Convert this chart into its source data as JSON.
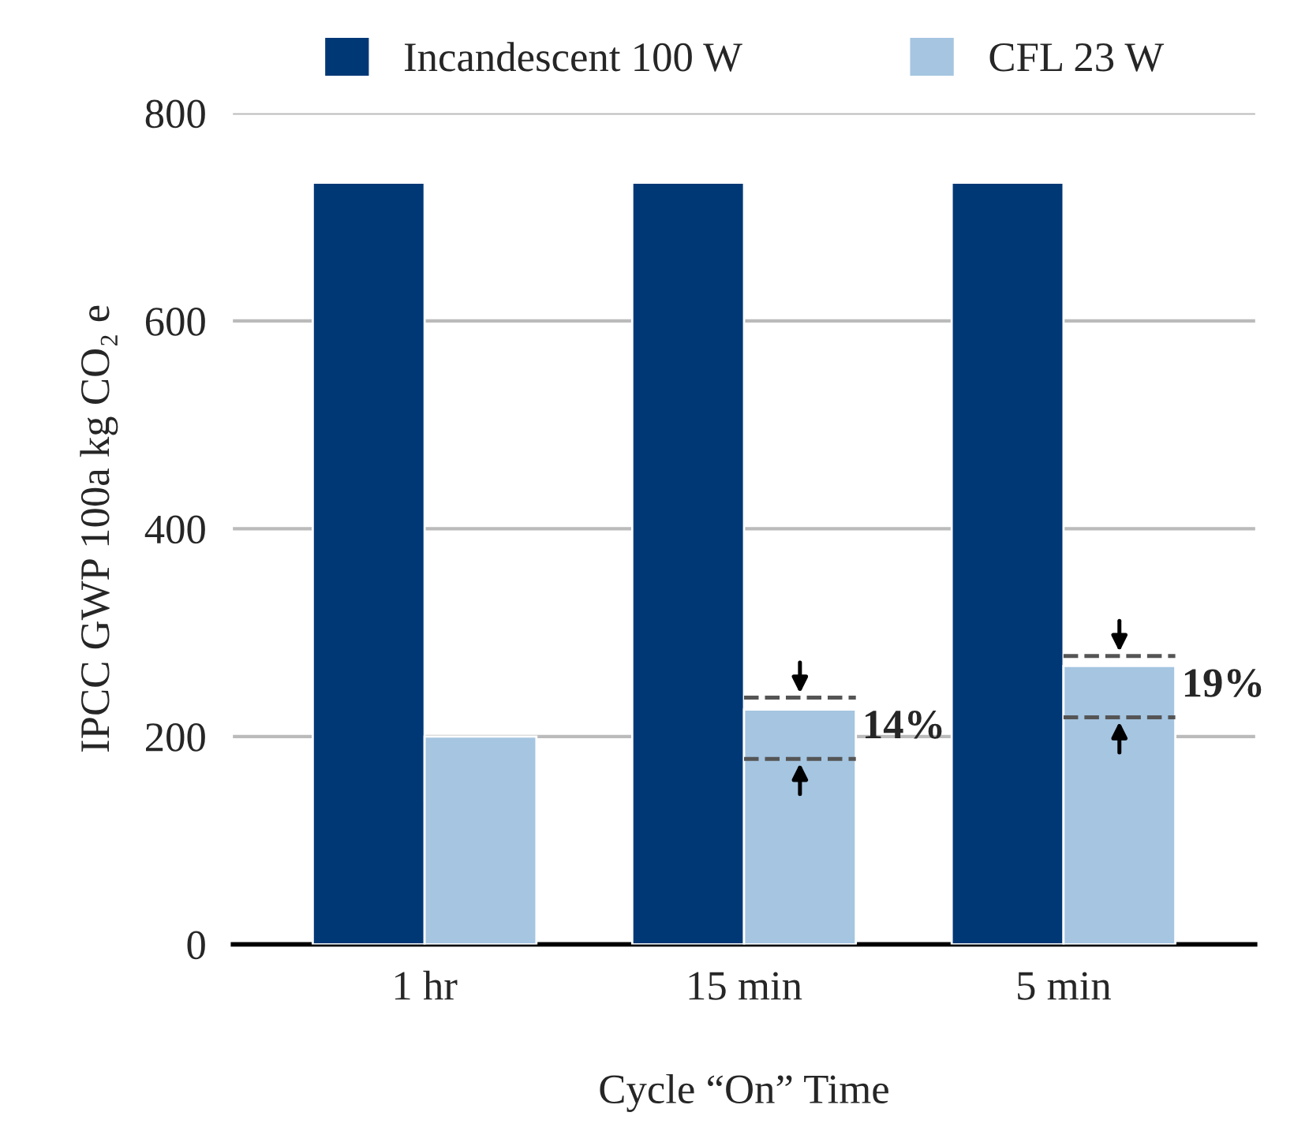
{
  "chart_data": {
    "type": "bar",
    "categories": [
      "1 hr",
      "15 min",
      "5 min"
    ],
    "series": [
      {
        "name": "Incandescent 100 W",
        "color": "#003876",
        "values": [
          733,
          733,
          733
        ]
      },
      {
        "name": "CFL 23 W",
        "color": "#a5c5e1",
        "values": [
          200,
          226,
          268
        ]
      }
    ],
    "xlabel": "Cycle “On” Time",
    "ylabel": "IPCC GWP 100a kg CO₂ e",
    "ylim": [
      0,
      800
    ],
    "yticks": [
      0,
      200,
      400,
      600,
      800
    ],
    "grid": "y",
    "legend": "top",
    "annotations": [
      {
        "text": "14%",
        "x": "15 min",
        "y": 208
      },
      {
        "text": "19%",
        "x": "5 min",
        "y": 248
      }
    ]
  }
}
